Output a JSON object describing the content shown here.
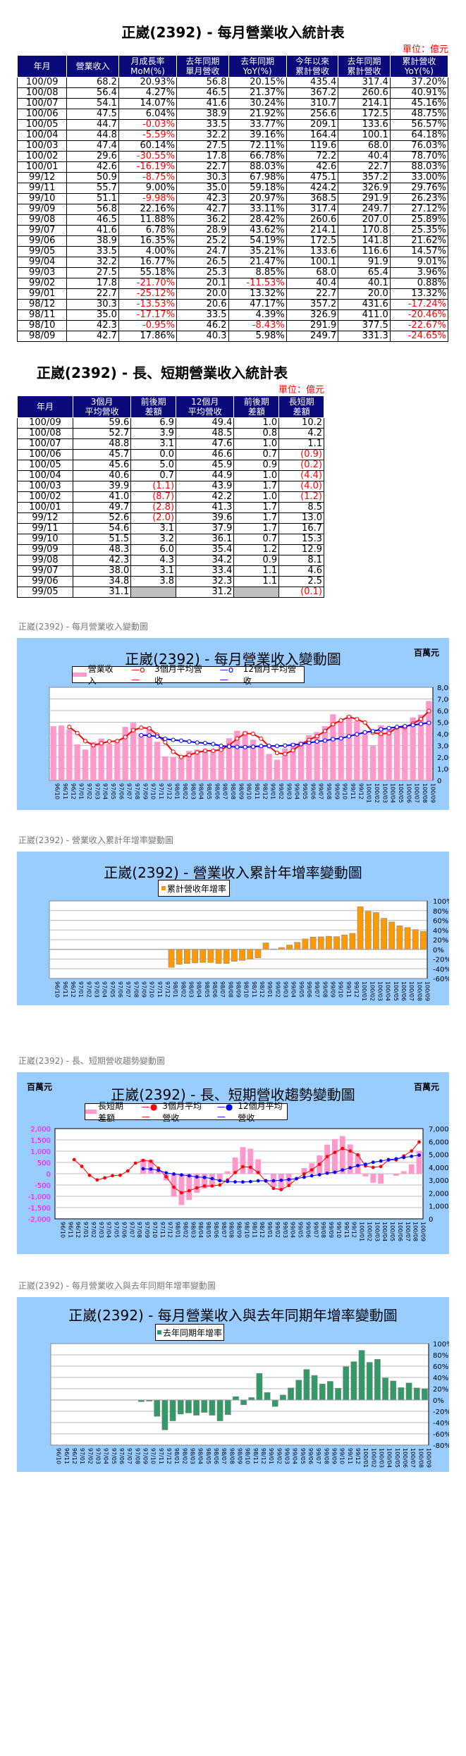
{
  "table1": {
    "title": "正崴(2392) - 每月營業收入統計表",
    "unit": "單位：億元",
    "headers": [
      [
        "年月",
        ""
      ],
      [
        "營業收入",
        ""
      ],
      [
        "月成長率",
        "MoM(%)"
      ],
      [
        "去年同期",
        "單月營收"
      ],
      [
        "去年同期",
        "YoY(%)"
      ],
      [
        "今年以來",
        "累計營收"
      ],
      [
        "去年同期",
        "累計營收"
      ],
      [
        "累計營收",
        "YoY(%)"
      ]
    ],
    "rows": [
      [
        "100/09",
        "68.2",
        "20.93%",
        "56.8",
        "20.15%",
        "435.4",
        "317.4",
        "37.20%"
      ],
      [
        "100/08",
        "56.4",
        "4.27%",
        "46.5",
        "21.37%",
        "367.2",
        "260.6",
        "40.91%"
      ],
      [
        "100/07",
        "54.1",
        "14.07%",
        "41.6",
        "30.24%",
        "310.7",
        "214.1",
        "45.16%"
      ],
      [
        "100/06",
        "47.5",
        "6.04%",
        "38.9",
        "21.92%",
        "256.6",
        "172.5",
        "48.75%"
      ],
      [
        "100/05",
        "44.7",
        "-0.03%",
        "33.5",
        "33.77%",
        "209.1",
        "133.6",
        "56.57%"
      ],
      [
        "100/04",
        "44.8",
        "-5.59%",
        "32.2",
        "39.16%",
        "164.4",
        "100.1",
        "64.18%"
      ],
      [
        "100/03",
        "47.4",
        "60.14%",
        "27.5",
        "72.11%",
        "119.6",
        "68.0",
        "76.03%"
      ],
      [
        "100/02",
        "29.6",
        "-30.55%",
        "17.8",
        "66.78%",
        "72.2",
        "40.4",
        "78.70%"
      ],
      [
        "100/01",
        "42.6",
        "-16.19%",
        "22.7",
        "88.03%",
        "42.6",
        "22.7",
        "88.03%"
      ],
      [
        "99/12",
        "50.9",
        "-8.75%",
        "30.3",
        "67.98%",
        "475.1",
        "357.2",
        "33.00%"
      ],
      [
        "99/11",
        "55.7",
        "9.00%",
        "35.0",
        "59.18%",
        "424.2",
        "326.9",
        "29.76%"
      ],
      [
        "99/10",
        "51.1",
        "-9.98%",
        "42.3",
        "20.97%",
        "368.5",
        "291.9",
        "26.23%"
      ],
      [
        "99/09",
        "56.8",
        "22.16%",
        "42.7",
        "33.11%",
        "317.4",
        "249.7",
        "27.12%"
      ],
      [
        "99/08",
        "46.5",
        "11.88%",
        "36.2",
        "28.42%",
        "260.6",
        "207.0",
        "25.89%"
      ],
      [
        "99/07",
        "41.6",
        "6.78%",
        "28.9",
        "43.62%",
        "214.1",
        "170.8",
        "25.35%"
      ],
      [
        "99/06",
        "38.9",
        "16.35%",
        "25.2",
        "54.19%",
        "172.5",
        "141.8",
        "21.62%"
      ],
      [
        "99/05",
        "33.5",
        "4.00%",
        "24.7",
        "35.21%",
        "133.6",
        "116.6",
        "14.57%"
      ],
      [
        "99/04",
        "32.2",
        "16.77%",
        "26.5",
        "21.47%",
        "100.1",
        "91.9",
        "9.01%"
      ],
      [
        "99/03",
        "27.5",
        "55.18%",
        "25.3",
        "8.85%",
        "68.0",
        "65.4",
        "3.96%"
      ],
      [
        "99/02",
        "17.8",
        "-21.70%",
        "20.1",
        "-11.53%",
        "40.4",
        "40.1",
        "0.88%"
      ],
      [
        "99/01",
        "22.7",
        "-25.12%",
        "20.0",
        "13.32%",
        "22.7",
        "20.0",
        "13.32%"
      ],
      [
        "98/12",
        "30.3",
        "-13.53%",
        "20.6",
        "47.17%",
        "357.2",
        "431.6",
        "-17.24%"
      ],
      [
        "98/11",
        "35.0",
        "-17.17%",
        "33.5",
        "4.39%",
        "326.9",
        "411.0",
        "-20.46%"
      ],
      [
        "98/10",
        "42.3",
        "-0.95%",
        "46.2",
        "-8.43%",
        "291.9",
        "377.5",
        "-22.67%"
      ],
      [
        "98/09",
        "42.7",
        "17.86%",
        "40.3",
        "5.98%",
        "249.7",
        "331.3",
        "-24.65%"
      ]
    ]
  },
  "table2": {
    "title": "正崴(2392) - 長、短期營業收入統計表",
    "unit": "單位：億元",
    "headers": [
      [
        "年月",
        ""
      ],
      [
        "3個月",
        "平均營收"
      ],
      [
        "前後期",
        "差額"
      ],
      [
        "12個月",
        "平均營收"
      ],
      [
        "前後期",
        "差額"
      ],
      [
        "長短期",
        "差額"
      ]
    ],
    "rows": [
      [
        "100/09",
        "59.6",
        "6.9",
        "49.4",
        "1.0",
        "10.2"
      ],
      [
        "100/08",
        "52.7",
        "3.9",
        "48.5",
        "0.8",
        "4.2"
      ],
      [
        "100/07",
        "48.8",
        "3.1",
        "47.6",
        "1.0",
        "1.1"
      ],
      [
        "100/06",
        "45.7",
        "0.0",
        "46.6",
        "0.7",
        "(0.9)"
      ],
      [
        "100/05",
        "45.6",
        "5.0",
        "45.9",
        "0.9",
        "(0.2)"
      ],
      [
        "100/04",
        "40.6",
        "0.7",
        "44.9",
        "1.0",
        "(4.4)"
      ],
      [
        "100/03",
        "39.9",
        "(1.1)",
        "43.9",
        "1.7",
        "(4.0)"
      ],
      [
        "100/02",
        "41.0",
        "(8.7)",
        "42.2",
        "1.0",
        "(1.2)"
      ],
      [
        "100/01",
        "49.7",
        "(2.8)",
        "41.3",
        "1.7",
        "8.5"
      ],
      [
        "99/12",
        "52.6",
        "(2.0)",
        "39.6",
        "1.7",
        "13.0"
      ],
      [
        "99/11",
        "54.6",
        "3.1",
        "37.9",
        "1.7",
        "16.7"
      ],
      [
        "99/10",
        "51.5",
        "3.2",
        "36.1",
        "0.7",
        "15.3"
      ],
      [
        "99/09",
        "48.3",
        "6.0",
        "35.4",
        "1.2",
        "12.9"
      ],
      [
        "99/08",
        "42.3",
        "4.3",
        "34.2",
        "0.9",
        "8.1"
      ],
      [
        "99/07",
        "38.0",
        "3.1",
        "33.4",
        "1.1",
        "4.6"
      ],
      [
        "99/06",
        "34.8",
        "3.8",
        "32.3",
        "1.1",
        "2.5"
      ],
      [
        "99/05",
        "31.1",
        "",
        "31.2",
        "",
        "(0.1)"
      ]
    ]
  },
  "captions": {
    "c1": "正崴(2392) - 每月營業收入變動圖",
    "c2": "正崴(2392) -  營業收入累計年增率變動圖",
    "c3": "正崴(2392) -  長、短期營收趨勢變動圖",
    "c4": "正崴(2392) -  每月營業收入與去年同期年增率變動圖"
  },
  "colors": {
    "header_bg": "#0a0a7a",
    "chart_bg": "#99ccff",
    "pink": "#ff99cc",
    "red": "#ff0000",
    "blue": "#0000ff",
    "orange": "#ff9900",
    "green": "#339966",
    "negative_text": "#ff0000"
  },
  "chart_data": [
    {
      "type": "bar+line",
      "title": "正崴(2392) - 每月營業收入變動圖",
      "unit_label": "百萬元",
      "legend": [
        "營業收入",
        "3個月平均營收",
        "12個月平均營收"
      ],
      "categories": [
        "96/10",
        "96/11",
        "96/12",
        "97/01",
        "97/02",
        "97/03",
        "97/04",
        "97/05",
        "97/06",
        "97/07",
        "97/08",
        "97/09",
        "97/10",
        "97/11",
        "97/12",
        "98/01",
        "98/02",
        "98/03",
        "98/04",
        "98/05",
        "98/06",
        "98/07",
        "98/08",
        "98/09",
        "98/10",
        "98/11",
        "98/12",
        "99/01",
        "99/02",
        "99/03",
        "99/04",
        "99/05",
        "99/06",
        "99/07",
        "99/08",
        "99/09",
        "99/10",
        "99/11",
        "99/12",
        "100/01",
        "100/02",
        "100/03",
        "100/04",
        "100/05",
        "100/06",
        "100/07",
        "100/08",
        "100/09"
      ],
      "series": [
        {
          "name": "營業收入",
          "kind": "bar",
          "values": [
            4650,
            4720,
            4400,
            3100,
            2650,
            3300,
            3600,
            3150,
            3400,
            4600,
            4950,
            4030,
            4420,
            3320,
            2060,
            2000,
            2010,
            2530,
            2650,
            2470,
            2530,
            2890,
            3620,
            4270,
            4230,
            3500,
            3030,
            2270,
            1780,
            2750,
            3220,
            3350,
            3890,
            4160,
            4650,
            5680,
            5110,
            5570,
            5090,
            4260,
            2960,
            4740,
            4480,
            4470,
            4750,
            5410,
            5640,
            6820
          ]
        },
        {
          "name": "3個月平均營收",
          "kind": "line",
          "values": [
            null,
            null,
            4590,
            4070,
            3380,
            3020,
            3180,
            3350,
            3380,
            3720,
            4320,
            4530,
            4470,
            3920,
            3270,
            2460,
            2020,
            2180,
            2400,
            2550,
            2550,
            2630,
            3010,
            3590,
            4040,
            4000,
            3590,
            2930,
            2360,
            2270,
            2580,
            3110,
            3480,
            3800,
            4230,
            4830,
            5150,
            5460,
            5260,
            4970,
            4100,
            3990,
            4060,
            4560,
            4570,
            4880,
            5270,
            5960
          ]
        },
        {
          "name": "12個月平均營收",
          "kind": "line",
          "values": [
            null,
            null,
            null,
            null,
            null,
            null,
            null,
            null,
            null,
            null,
            null,
            3880,
            3860,
            3770,
            3570,
            3480,
            3410,
            3340,
            3250,
            3210,
            3120,
            2960,
            2900,
            2870,
            2860,
            2890,
            2950,
            2960,
            2950,
            2990,
            3050,
            3120,
            3230,
            3340,
            3420,
            3540,
            3610,
            3790,
            3960,
            4130,
            4220,
            4390,
            4490,
            4590,
            4660,
            4760,
            4850,
            4940
          ]
        }
      ],
      "ylim": [
        0,
        8000
      ],
      "yticks": [
        "0",
        "1,000",
        "2,000",
        "3,000",
        "4,000",
        "5,000",
        "6,000",
        "7,000",
        "8,000"
      ]
    },
    {
      "type": "bar",
      "title": "正崴(2392) -  營業收入累計年增率變動圖",
      "legend": [
        "累計營收年增率"
      ],
      "categories_ref": "same as chart 1",
      "values": [
        null,
        null,
        null,
        null,
        null,
        null,
        null,
        null,
        null,
        null,
        null,
        null,
        null,
        null,
        null,
        -37,
        -31,
        -29,
        -28,
        -27,
        -27,
        -29,
        -29,
        -24.65,
        -22.67,
        -20.46,
        -17.24,
        13.32,
        0.88,
        3.96,
        9.01,
        14.57,
        21.62,
        25.35,
        25.89,
        27.12,
        26.23,
        29.76,
        33.0,
        88.03,
        78.7,
        76.03,
        64.18,
        56.57,
        48.75,
        45.16,
        40.91,
        37.2
      ],
      "ylim": [
        -60,
        100
      ],
      "yticks": [
        "-60%",
        "-40%",
        "-20%",
        "0%",
        "20%",
        "40%",
        "60%",
        "80%",
        "100%"
      ]
    },
    {
      "type": "bar+line",
      "title": "正崴(2392) -  長、短期營收趨勢變動圖",
      "unit_label_left": "百萬元",
      "unit_label_right": "百萬元",
      "legend": [
        "長短期差額",
        "3個月平均營收",
        "12個月平均營收"
      ],
      "categories_ref": "same as chart 1",
      "bars_left_axis": [
        null,
        null,
        null,
        null,
        null,
        null,
        null,
        null,
        null,
        null,
        null,
        650,
        610,
        150,
        -300,
        -1020,
        -1390,
        -1160,
        -850,
        -660,
        -570,
        -330,
        110,
        720,
        1180,
        1110,
        640,
        -30,
        -590,
        -720,
        -470,
        -10,
        250,
        460,
        810,
        1290,
        1540,
        1670,
        1300,
        850,
        -120,
        -400,
        -440,
        -20,
        -90,
        110,
        420,
        1020
      ],
      "ylim_left": [
        -2000,
        2000
      ],
      "yticks_left": [
        "-2,000",
        "-1,500",
        "-1,000",
        "-500",
        "0",
        "500",
        "1,000",
        "1,500",
        "2,000"
      ],
      "ylim_right": [
        0,
        7000
      ],
      "yticks_right": [
        "0",
        "1,000",
        "2,000",
        "3,000",
        "4,000",
        "5,000",
        "6,000",
        "7,000"
      ]
    },
    {
      "type": "bar",
      "title": "正崴(2392) -  每月營業收入與去年同期年增率變動圖",
      "legend": [
        "去年同期年增率"
      ],
      "categories_ref": "same as chart 1",
      "values": [
        null,
        null,
        null,
        null,
        null,
        null,
        null,
        null,
        null,
        null,
        null,
        -3,
        -2,
        -29,
        -53,
        -37,
        -25,
        -23,
        -27,
        -22,
        -27,
        -37,
        -26,
        5.98,
        -8.43,
        4.39,
        47.17,
        13.32,
        -11.53,
        8.85,
        21.47,
        35.21,
        54.19,
        43.62,
        28.42,
        33.11,
        20.97,
        59.18,
        67.98,
        88.03,
        66.78,
        72.11,
        39.16,
        33.77,
        21.92,
        30.24,
        21.37,
        20.15
      ],
      "ylim": [
        -80,
        100
      ],
      "yticks": [
        "-80%",
        "-60%",
        "-40%",
        "-20%",
        "0%",
        "20%",
        "40%",
        "60%",
        "80%",
        "100%"
      ]
    }
  ]
}
